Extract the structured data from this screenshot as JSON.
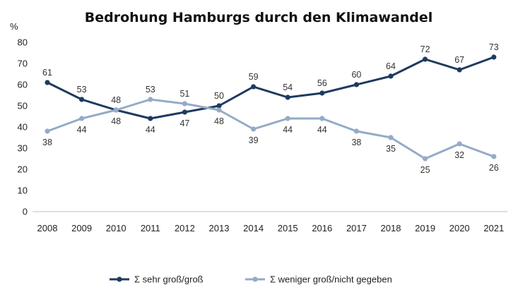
{
  "chart_data": {
    "type": "line",
    "title": "Bedrohung Hamburgs durch den Klimawandel",
    "ylabel": "%",
    "xlabel": "",
    "ylim": [
      0,
      80
    ],
    "yticks": [
      0,
      10,
      20,
      30,
      40,
      50,
      60,
      70,
      80
    ],
    "categories": [
      "2008",
      "2009",
      "2010",
      "2011",
      "2012",
      "2013",
      "2014",
      "2015",
      "2016",
      "2017",
      "2018",
      "2019",
      "2020",
      "2021"
    ],
    "series": [
      {
        "name": "Σ sehr groß/groß",
        "color": "#1f3a5f",
        "values": [
          61,
          53,
          48,
          44,
          47,
          50,
          59,
          54,
          56,
          60,
          64,
          72,
          67,
          73
        ],
        "label_position": [
          "above",
          "above",
          "below",
          "below",
          "below",
          "above",
          "above",
          "above",
          "above",
          "above",
          "above",
          "above",
          "above",
          "above"
        ]
      },
      {
        "name": "Σ weniger groß/nicht gegeben",
        "color": "#94abc6",
        "values": [
          38,
          44,
          48,
          53,
          51,
          48,
          39,
          44,
          44,
          38,
          35,
          25,
          32,
          26
        ],
        "label_position": [
          "below",
          "below",
          "above",
          "above",
          "above",
          "below",
          "below",
          "below",
          "below",
          "below",
          "below",
          "below",
          "below",
          "below"
        ]
      }
    ],
    "grid": false,
    "legend": "bottom-center"
  }
}
